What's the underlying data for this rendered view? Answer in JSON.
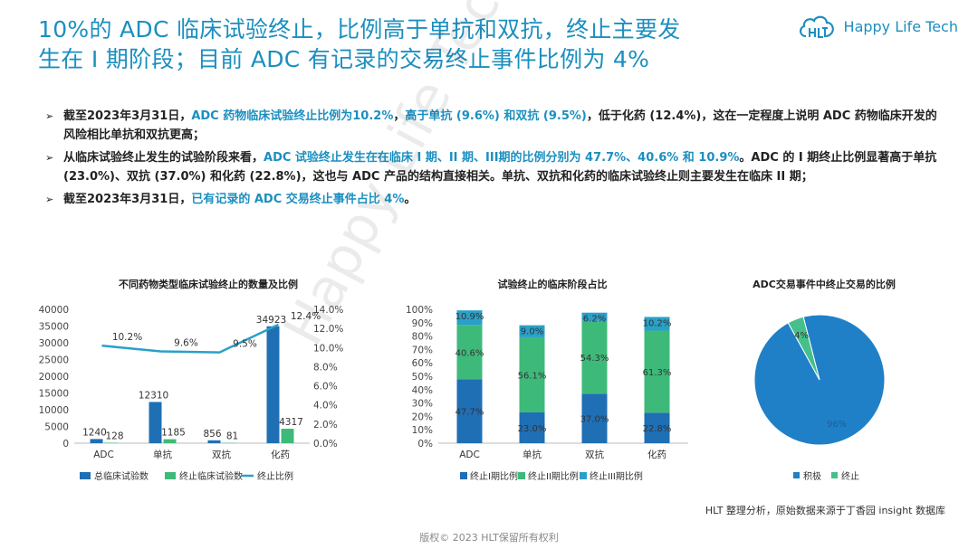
{
  "header": {
    "title_line1": "10%的 ADC 临床试验终止，比例高于单抗和双抗，终止主要发",
    "title_line2": "生在 I 期阶段；目前 ADC 有记录的交易终止事件比例为 4%",
    "logo_text": "Happy Life Tech"
  },
  "bullets": [
    {
      "parts": [
        {
          "t": "截至2023年3月31日，",
          "hl": false
        },
        {
          "t": "ADC 药物临床试验终止比例为10.2%",
          "hl": true
        },
        {
          "t": "，",
          "hl": false
        },
        {
          "t": "高于单抗 (9.6%) 和双抗 (9.5%)",
          "hl": true
        },
        {
          "t": "，低于化药 (12.4%)，这在一定程度上说明 ADC 药物临床开发的风险相比单抗和双抗更高；",
          "hl": false
        }
      ]
    },
    {
      "parts": [
        {
          "t": "从临床试验终止发生的试验阶段来看，",
          "hl": false
        },
        {
          "t": "ADC 试验终止发生在在临床 I 期、II 期、III期的比例分别为 47.7%、40.6% 和 10.9%",
          "hl": true
        },
        {
          "t": "。ADC 的 I 期终止比例显著高于单抗 (23.0%)、双抗 (37.0%) 和化药 (22.8%)，这也与 ADC 产品的结构直接相关。单抗、双抗和化药的临床试验终止则主要发生在临床 II 期；",
          "hl": false
        }
      ]
    },
    {
      "parts": [
        {
          "t": "截至2023年3月31日，",
          "hl": false
        },
        {
          "t": "已有记录的 ADC 交易终止事件占比 4%",
          "hl": true
        },
        {
          "t": "。",
          "hl": false
        }
      ]
    }
  ],
  "colors": {
    "blue": "#1f6fb5",
    "green": "#3dba7a",
    "line": "#2aa0c8",
    "pie_blue": "#1f80c8",
    "pie_green": "#46c08a"
  },
  "chart_data": [
    {
      "type": "bar",
      "title": "不同药物类型临床试验终止的数量及比例",
      "categories": [
        "ADC",
        "单抗",
        "双抗",
        "化药"
      ],
      "series": [
        {
          "name": "总临床试验数",
          "values": [
            1240,
            12310,
            856,
            34923
          ]
        },
        {
          "name": "终止临床试验数",
          "values": [
            128,
            1185,
            81,
            4317
          ]
        },
        {
          "name": "终止比例",
          "type": "line",
          "axis": "right",
          "values": [
            10.2,
            9.6,
            9.5,
            12.4
          ],
          "labels": [
            "10.2%",
            "9.6%",
            "9.5%",
            "12.4%"
          ]
        }
      ],
      "ylim": [
        0,
        40000
      ],
      "yticks": [
        "0",
        "5000",
        "10000",
        "15000",
        "20000",
        "25000",
        "30000",
        "35000",
        "40000"
      ],
      "y2lim": [
        0,
        14
      ],
      "y2ticks": [
        "0.0%",
        "2.0%",
        "4.0%",
        "6.0%",
        "8.0%",
        "10.0%",
        "12.0%",
        "14.0%"
      ],
      "legend": "bottom"
    },
    {
      "type": "bar",
      "stacked": true,
      "title": "试验终止的临床阶段占比",
      "categories": [
        "ADC",
        "单抗",
        "双抗",
        "化药"
      ],
      "series": [
        {
          "name": "终止I期比例",
          "values": [
            47.7,
            23.0,
            37.0,
            22.8
          ],
          "labels": [
            "47.7%",
            "23.0%",
            "37.0%",
            "22.8%"
          ]
        },
        {
          "name": "终止II期比例",
          "values": [
            40.6,
            56.1,
            54.3,
            61.3
          ],
          "labels": [
            "40.6%",
            "56.1%",
            "54.3%",
            "61.3%"
          ]
        },
        {
          "name": "终止III期比例",
          "values": [
            10.9,
            9.0,
            6.2,
            10.2
          ],
          "labels": [
            "10.9%",
            "9.0%",
            "6.2%",
            "10.2%"
          ]
        }
      ],
      "ylim": [
        0,
        100
      ],
      "yticks": [
        "0%",
        "10%",
        "20%",
        "30%",
        "40%",
        "50%",
        "60%",
        "70%",
        "80%",
        "90%",
        "100%"
      ],
      "legend": "bottom"
    },
    {
      "type": "pie",
      "title": "ADC交易事件中终止交易的比例",
      "labels": [
        "积极",
        "终止"
      ],
      "values": [
        96,
        4
      ],
      "value_labels": [
        "96%",
        "4%"
      ],
      "legend": "bottom"
    }
  ],
  "watermark": "Happy Life Tech",
  "source": "HLT 整理分析，原始数据来源于丁香园 insight 数据库",
  "footer": "版权© 2023 HLT保留所有权利"
}
